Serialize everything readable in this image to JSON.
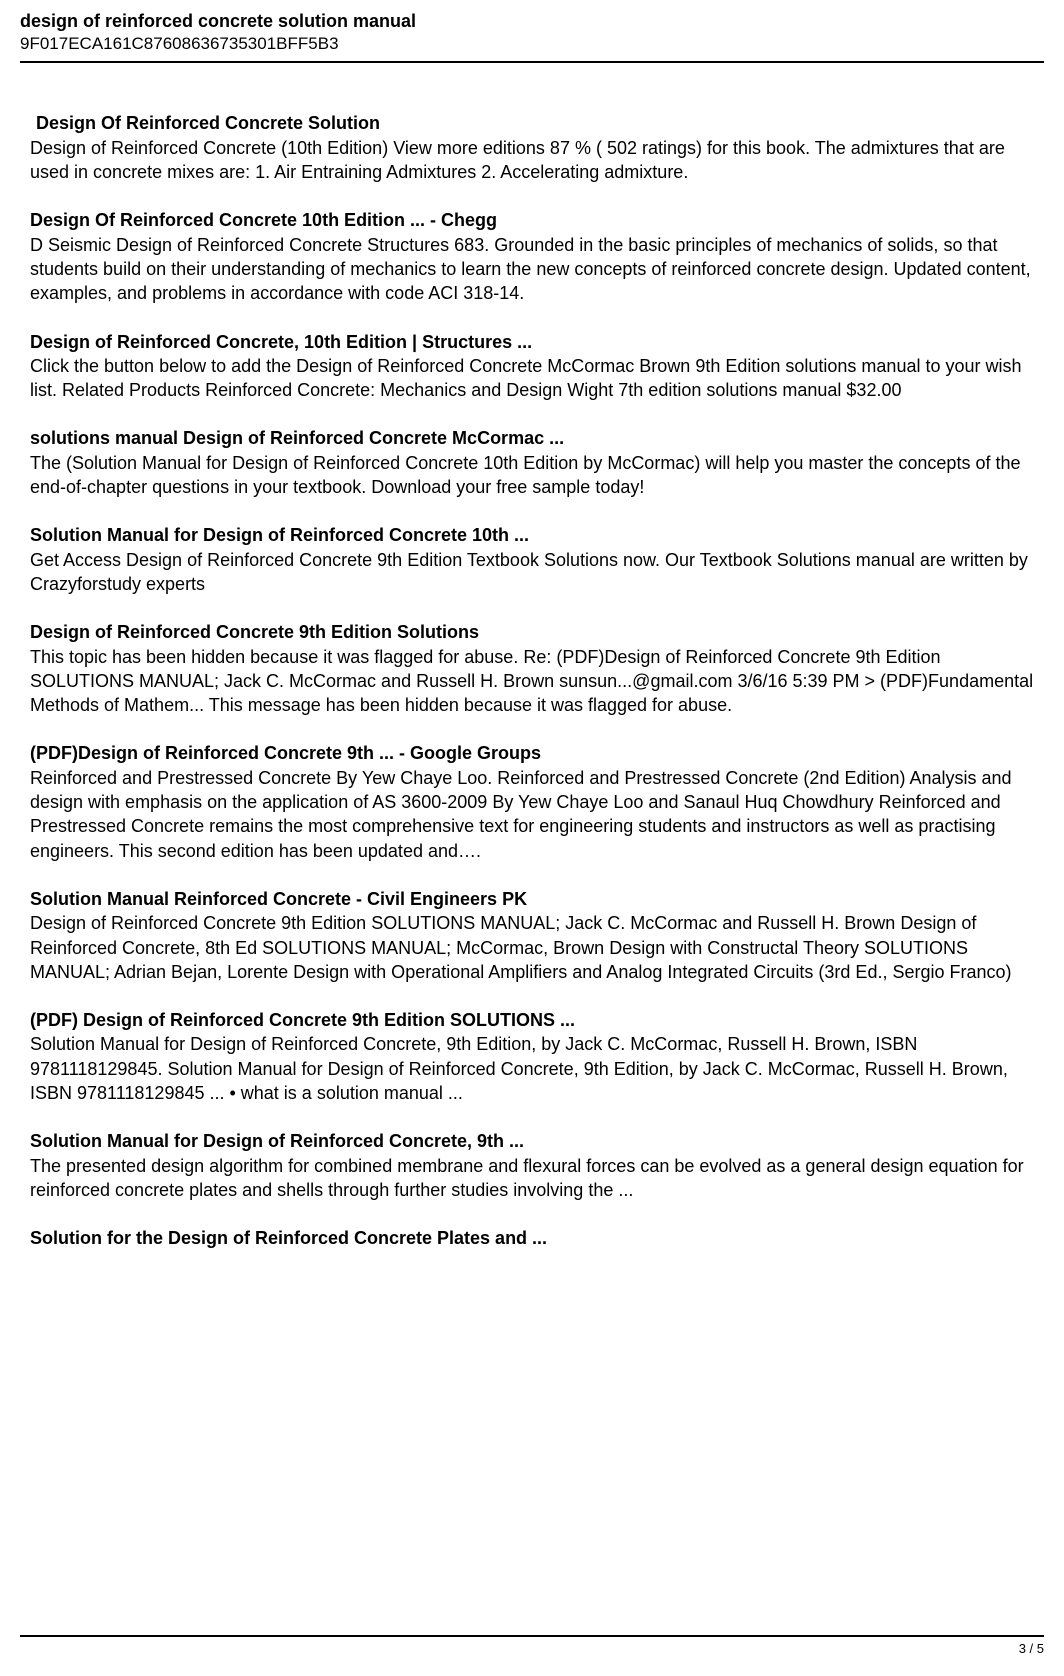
{
  "header": {
    "title": "design of reinforced concrete solution manual",
    "hash": "9F017ECA161C87608636735301BFF5B3"
  },
  "sections": [
    {
      "heading": " Design Of Reinforced Concrete Solution",
      "body": "Design of Reinforced Concrete (10th Edition) View more editions 87 % ( 502 ratings) for this book. The admixtures that are used in concrete mixes are: 1. Air Entraining Admixtures 2. Accelerating admixture."
    },
    {
      "heading": "Design Of Reinforced Concrete 10th Edition ... - Chegg",
      "body": "D Seismic Design of Reinforced Concrete Structures 683. Grounded in the basic principles of mechanics of solids, so that students build on their understanding of mechanics to learn the new concepts of reinforced concrete design. Updated content, examples, and problems in accordance with code ACI 318-14."
    },
    {
      "heading": "Design of Reinforced Concrete, 10th Edition | Structures ...",
      "body": "Click the button below to add the Design of Reinforced Concrete McCormac Brown 9th Edition solutions manual to your wish list. Related Products Reinforced Concrete: Mechanics and Design Wight 7th edition solutions manual $32.00"
    },
    {
      "heading": "solutions manual Design of Reinforced Concrete McCormac ...",
      "body": "The (Solution Manual for Design of Reinforced Concrete 10th Edition by McCormac) will help you master the concepts of the end-of-chapter questions in your textbook. Download your free sample today!"
    },
    {
      "heading": "Solution Manual for Design of Reinforced Concrete 10th ...",
      "body": "Get Access Design of Reinforced Concrete 9th Edition Textbook Solutions now. Our Textbook Solutions manual are written by Crazyforstudy experts"
    },
    {
      "heading": "Design of Reinforced Concrete 9th Edition Solutions",
      "body": "This topic has been hidden because it was flagged for abuse. Re: (PDF)Design of Reinforced Concrete 9th Edition SOLUTIONS MANUAL; Jack C. McCormac and Russell H. Brown sunsun...@gmail.com 3/6/16 5:39 PM > (PDF)Fundamental Methods of Mathem... This message has been hidden because it was flagged for abuse."
    },
    {
      "heading": "(PDF)Design of Reinforced Concrete 9th ... - Google Groups",
      "body": "Reinforced and Prestressed Concrete By Yew Chaye Loo. Reinforced and Prestressed Concrete (2nd Edition) Analysis and design with emphasis on the application of AS 3600-2009 By Yew Chaye Loo and Sanaul Huq Chowdhury Reinforced and Prestressed Concrete remains the most comprehensive text for engineering students and instructors as well as practising engineers. This second edition has been updated and…."
    },
    {
      "heading": "Solution Manual Reinforced Concrete - Civil Engineers PK",
      "body": "Design of Reinforced Concrete 9th Edition SOLUTIONS MANUAL; Jack C. McCormac and Russell H. Brown Design of Reinforced Concrete, 8th Ed SOLUTIONS MANUAL; McCormac, Brown Design with Constructal Theory SOLUTIONS MANUAL; Adrian Bejan, Lorente Design with Operational Amplifiers and Analog Integrated Circuits (3rd Ed., Sergio Franco)"
    },
    {
      "heading": "(PDF) Design of Reinforced Concrete 9th Edition SOLUTIONS ...",
      "body": "Solution Manual for Design of Reinforced Concrete, 9th Edition, by Jack C. McCormac, Russell H. Brown, ISBN 9781118129845. Solution Manual for Design of Reinforced Concrete, 9th Edition, by Jack C. McCormac, Russell H. Brown, ISBN 9781118129845 ... • what is a solution manual ..."
    },
    {
      "heading": "Solution Manual for Design of Reinforced Concrete, 9th ...",
      "body": "The presented design algorithm for combined membrane and flexural forces can be evolved as a general design equation for reinforced concrete plates and shells through further studies involving the ..."
    },
    {
      "heading": "Solution for the Design of Reinforced Concrete Plates and ...",
      "body": ""
    }
  ],
  "footer": {
    "page_number": "3 / 5"
  }
}
